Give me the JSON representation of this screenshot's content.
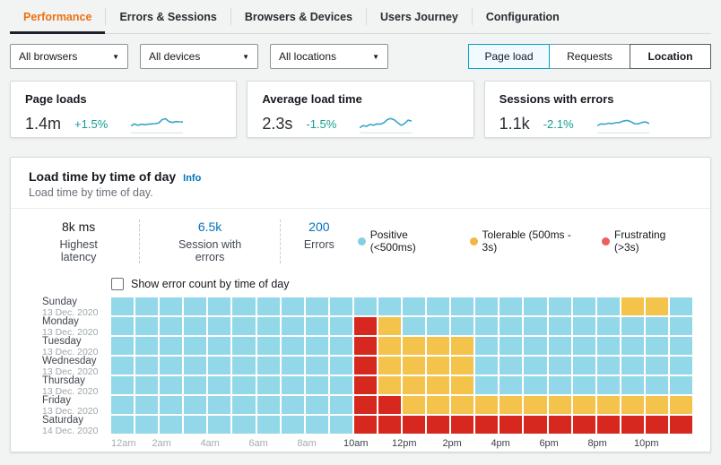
{
  "tabs": {
    "items": [
      {
        "label": "Performance",
        "active": true
      },
      {
        "label": "Errors & Sessions",
        "active": false
      },
      {
        "label": "Browsers & Devices",
        "active": false
      },
      {
        "label": "Users Journey",
        "active": false
      },
      {
        "label": "Configuration",
        "active": false
      }
    ]
  },
  "filters": [
    {
      "name": "browsers-filter",
      "value": "All browsers"
    },
    {
      "name": "devices-filter",
      "value": "All devices"
    },
    {
      "name": "locations-filter",
      "value": "All locations"
    }
  ],
  "view_toggle": {
    "options": [
      {
        "label": "Page load",
        "state": "selected"
      },
      {
        "label": "Requests",
        "state": "default"
      },
      {
        "label": "Location",
        "state": "emphasis"
      }
    ]
  },
  "metric_cards": [
    {
      "title": "Page loads",
      "value": "1.4m",
      "change": "+1.5%",
      "trend": [
        0.28,
        0.42,
        0.32,
        0.4,
        0.36,
        0.4,
        0.42,
        0.44,
        0.48,
        0.72,
        0.78,
        0.58,
        0.52,
        0.58,
        0.56,
        0.55
      ]
    },
    {
      "title": "Average load time",
      "value": "2.3s",
      "change": "-1.5%",
      "trend": [
        0.15,
        0.3,
        0.25,
        0.38,
        0.33,
        0.42,
        0.4,
        0.5,
        0.72,
        0.8,
        0.7,
        0.5,
        0.32,
        0.45,
        0.68,
        0.62
      ]
    },
    {
      "title": "Sessions with errors",
      "value": "1.1k",
      "change": "-2.1%",
      "trend": [
        0.3,
        0.42,
        0.4,
        0.46,
        0.44,
        0.5,
        0.52,
        0.62,
        0.66,
        0.58,
        0.44,
        0.42,
        0.52,
        0.56,
        0.44
      ]
    }
  ],
  "panel": {
    "title": "Load time by time of day",
    "info_label": "Info",
    "subtitle": "Load time by time of day.",
    "stats": [
      {
        "value": "8k ms",
        "label": "Highest latency",
        "link": false
      },
      {
        "value": "6.5k",
        "label": "Session with errors",
        "link": true
      },
      {
        "value": "200",
        "label": "Errors",
        "link": true
      }
    ],
    "legend": [
      {
        "label": "Positive (<500ms)",
        "color": "#87cee4"
      },
      {
        "label": "Tolerable (500ms - 3s)",
        "color": "#f0b840"
      },
      {
        "label": "Frustrating (>3s)",
        "color": "#eb5f60"
      }
    ],
    "checkbox_label": "Show error count by time of day",
    "checkbox_checked": false
  },
  "chart_data": {
    "type": "heatmap",
    "title": "Load time by time of day",
    "x_labels": [
      "12am",
      "2am",
      "4am",
      "6am",
      "8am",
      "10am",
      "12pm",
      "2pm",
      "4pm",
      "6pm",
      "8pm",
      "10pm"
    ],
    "hours_per_row": 24,
    "categories": {
      "P": "Positive (<500ms)",
      "T": "Tolerable (500ms - 3s)",
      "F": "Frustrating (>3s)"
    },
    "cell_colors": {
      "P": "#92d8e9",
      "T": "#f3c34c",
      "F": "#d6281e"
    },
    "rows": [
      {
        "day": "Sunday",
        "date": "13 Dec. 2020",
        "cells": "PPPPPPPPPPPPPPPPPPPPPTTP"
      },
      {
        "day": "Monday",
        "date": "13 Dec. 2020",
        "cells": "PPPPPPPPPPFTPPPPPPPPPPPP"
      },
      {
        "day": "Tuesday",
        "date": "13 Dec. 2020",
        "cells": "PPPPPPPPPPFTTTTPPPPPPPPP"
      },
      {
        "day": "Wednesday",
        "date": "13 Dec. 2020",
        "cells": "PPPPPPPPPPFTTTTPPPPPPPPP"
      },
      {
        "day": "Thursday",
        "date": "13 Dec. 2020",
        "cells": "PPPPPPPPPPFTTTTPPPPPPPPP"
      },
      {
        "day": "Friday",
        "date": "13 Dec. 2020",
        "cells": "PPPPPPPPPPFFTTTTTTTTTTTT"
      },
      {
        "day": "Saturday",
        "date": "14 Dec. 2020",
        "cells": "PPPPPPPPPPFFFFFFFFFFFFFF"
      }
    ]
  },
  "colors": {
    "accent_orange": "#ec7211",
    "link_blue": "#0073bb",
    "positive_change": "#12a092",
    "sparkline": "#38a6c8"
  }
}
